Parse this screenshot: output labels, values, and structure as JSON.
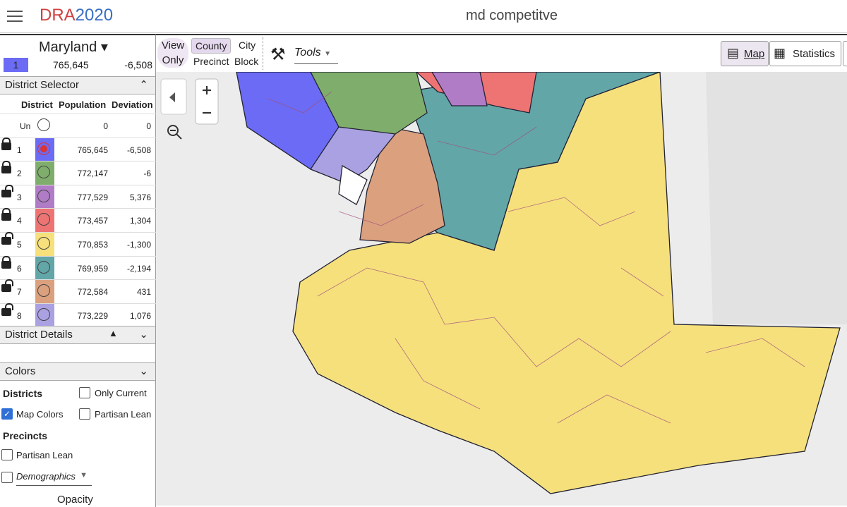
{
  "header": {
    "logo_left": "DRA",
    "logo_right": "2020",
    "title": "md competitve"
  },
  "state": {
    "name": "Maryland",
    "current_district": "1",
    "population": "765,645",
    "deviation": "-6,508"
  },
  "toolbar": {
    "view_only": "View Only",
    "county": "County",
    "city": "City",
    "precinct": "Precinct",
    "block": "Block",
    "tools": "Tools",
    "map": "Map",
    "statistics": "Statistics"
  },
  "district_selector": {
    "title": "District Selector",
    "columns": [
      "District",
      "Population",
      "Deviation"
    ],
    "rows": [
      {
        "district": "Un",
        "population": "0",
        "deviation": "0",
        "color": "#ffffff"
      },
      {
        "district": "1",
        "population": "765,645",
        "deviation": "-6,508",
        "color": "#6b6bf5",
        "locked": true
      },
      {
        "district": "2",
        "population": "772,147",
        "deviation": "-6",
        "color": "#7fae6c",
        "locked": true
      },
      {
        "district": "3",
        "population": "777,529",
        "deviation": "5,376",
        "color": "#b07cc6",
        "locked": false
      },
      {
        "district": "4",
        "population": "773,457",
        "deviation": "1,304",
        "color": "#ee7474",
        "locked": true
      },
      {
        "district": "5",
        "population": "770,853",
        "deviation": "-1,300",
        "color": "#f6e07c",
        "locked": false
      },
      {
        "district": "6",
        "population": "769,959",
        "deviation": "-2,194",
        "color": "#62a6a8",
        "locked": true
      },
      {
        "district": "7",
        "population": "772,584",
        "deviation": "431",
        "color": "#dba07e",
        "locked": false
      },
      {
        "district": "8",
        "population": "773,229",
        "deviation": "1,076",
        "color": "#aaa1e2",
        "locked": false
      }
    ]
  },
  "district_details": {
    "title": "District Details"
  },
  "colors": {
    "title": "Colors",
    "districts": "Districts",
    "only_current": "Only Current",
    "map_colors": "Map Colors",
    "partisan_lean": "Partisan Lean",
    "precincts": "Precincts",
    "precinct_partisan_lean": "Partisan Lean",
    "demographics": "Demographics",
    "opacity": "Opacity"
  }
}
